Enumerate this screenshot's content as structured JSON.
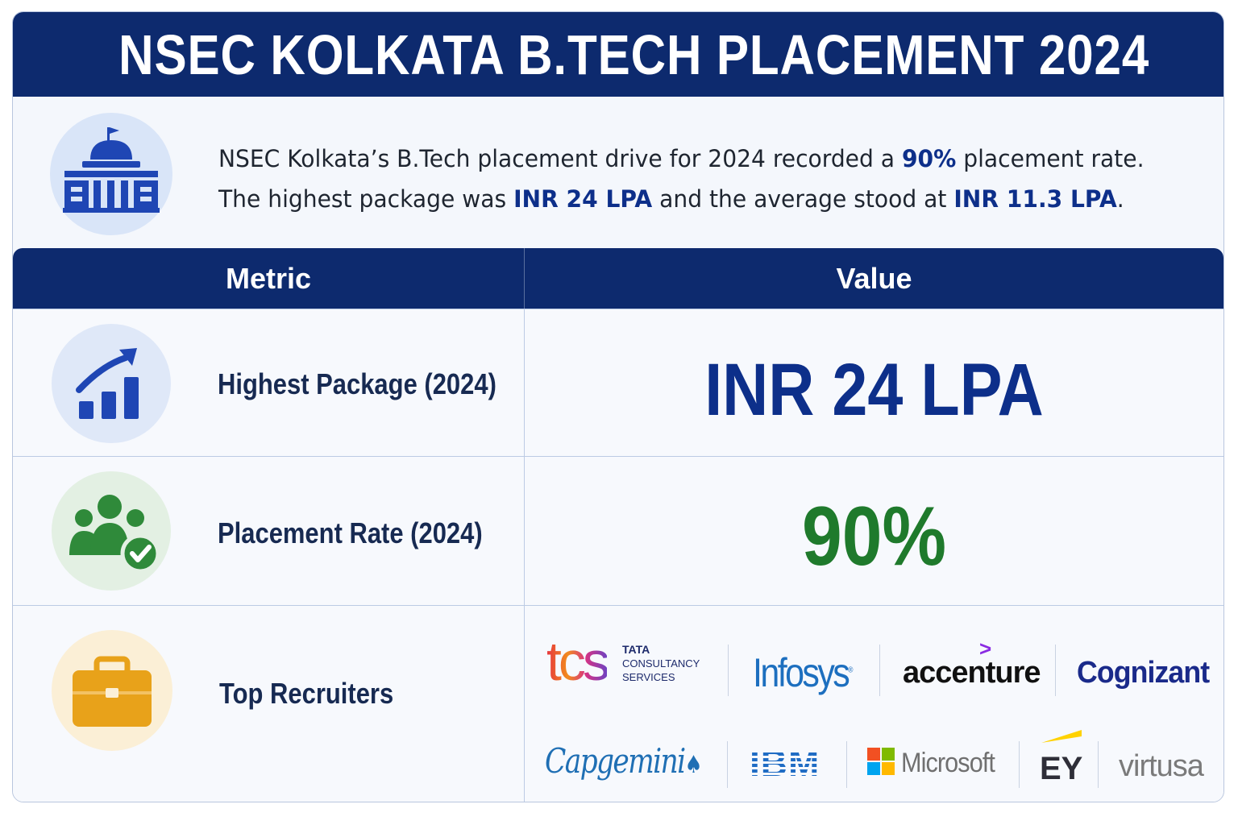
{
  "title": "NSEC KOLKATA B.TECH PLACEMENT 2024",
  "intro": {
    "part1": "NSEC Kolkata’s B.Tech placement drive for 2024 recorded a ",
    "rate": "90%",
    "part2": " placement rate. The highest package was ",
    "highest": "INR 24 LPA",
    "part3": " and the average stood at ",
    "average": "INR 11.3 LPA",
    "part4": "."
  },
  "table": {
    "header_metric": "Metric",
    "header_value": "Value",
    "rows": [
      {
        "label": "Highest Package (2024)",
        "value": "INR 24 LPA",
        "icon": "growth-chart-icon"
      },
      {
        "label": "Placement Rate (2024)",
        "value": "90%",
        "icon": "people-check-icon"
      },
      {
        "label": "Top Recruiters",
        "icon": "briefcase-icon"
      }
    ]
  },
  "recruiters": {
    "tcs_mark": "tcs",
    "tcs_line1": "TATA",
    "tcs_line2": "CONSULTANCY",
    "tcs_line3": "SERVICES",
    "infosys": "Infosys",
    "accenture": "accenture",
    "cognizant": "Cognizant",
    "capgemini": "Capgemini",
    "ibm": "IBM",
    "microsoft": "Microsoft",
    "ey": "EY",
    "virtusa": "virtusa"
  },
  "colors": {
    "navy": "#0d2a6e",
    "accent_blue": "#0d2f8a",
    "green": "#1f7a2c",
    "orange": "#e8a21a"
  }
}
